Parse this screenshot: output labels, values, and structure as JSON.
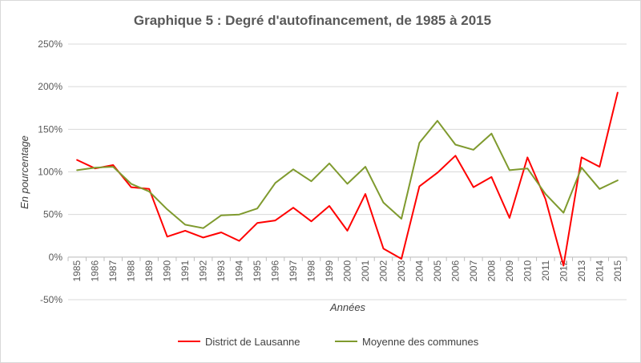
{
  "chart_data": {
    "type": "line",
    "title": "Graphique 5 : Degré d'autofinancement, de 1985 à 2015",
    "xlabel": "Années",
    "ylabel": "En pourcentage",
    "ylim": [
      -50,
      250
    ],
    "yticks": [
      -50,
      0,
      50,
      100,
      150,
      200,
      250
    ],
    "ytick_labels": [
      "-50%",
      "0%",
      "50%",
      "100%",
      "150%",
      "200%",
      "250%"
    ],
    "grid": "horizontal",
    "legend_position": "bottom",
    "x": [
      "1985",
      "1986",
      "1987",
      "1988",
      "1989",
      "1990",
      "1991",
      "1992",
      "1993",
      "1994",
      "1995",
      "1996",
      "1997",
      "1998",
      "1999",
      "2000",
      "2001",
      "2002",
      "2003",
      "2004",
      "2005",
      "2006",
      "2007",
      "2008",
      "2009",
      "2010",
      "2011",
      "2012",
      "2013",
      "2014",
      "2015"
    ],
    "series": [
      {
        "name": "District de Lausanne",
        "color": "#ff0000",
        "values": [
          114,
          104,
          108,
          82,
          80,
          24,
          31,
          23,
          29,
          19,
          40,
          43,
          58,
          42,
          60,
          31,
          74,
          10,
          -2,
          83,
          99,
          119,
          82,
          94,
          46,
          117,
          68,
          -10,
          117,
          106,
          193
        ]
      },
      {
        "name": "Moyenne des communes",
        "color": "#7f9a2e",
        "values": [
          102,
          105,
          106,
          86,
          77,
          56,
          38,
          34,
          49,
          50,
          57,
          87,
          103,
          89,
          110,
          86,
          106,
          64,
          45,
          134,
          160,
          132,
          126,
          145,
          102,
          104,
          74,
          52,
          105,
          80,
          90
        ]
      }
    ]
  }
}
